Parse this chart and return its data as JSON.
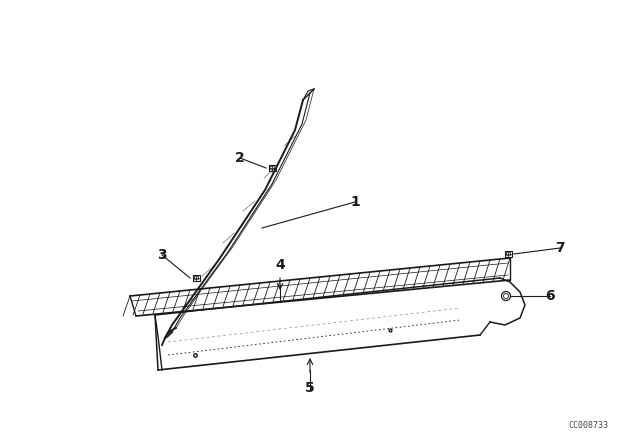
{
  "bg_color": "#ffffff",
  "line_color": "#1a1a1a",
  "label_color": "#1a1a1a",
  "fig_width": 6.4,
  "fig_height": 4.48,
  "watermark": "CC008733"
}
